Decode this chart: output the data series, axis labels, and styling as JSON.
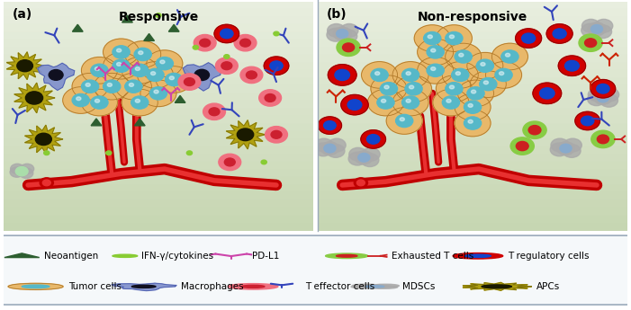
{
  "title_a": "Responsive",
  "title_b": "Non-responsive",
  "label_a": "(a)",
  "label_b": "(b)",
  "bg_top": "#e8eedf",
  "bg_bottom": "#c5d5b0",
  "legend_bg": "#f5f8fa",
  "border_color": "#9aaabb",
  "tumor_outer": "#e8b86a",
  "tumor_inner": "#56b8c8",
  "vessel_dark": "#c00000",
  "vessel_light": "#e83030",
  "treg_outer": "#d00000",
  "treg_inner": "#1144cc",
  "teff_outer": "#f07080",
  "teff_inner": "#cc2030",
  "apc_outer": "#b0a010",
  "apc_inner": "#1a1a00",
  "macro_outer": "#8090cc",
  "macro_inner": "#101020",
  "mdsc_outer": "#aaaaaa",
  "mdsc_inner": "#88aacc",
  "neoantigen_color": "#2d5e30",
  "cytokine_color": "#88cc33",
  "pdl1_color": "#cc44aa",
  "antibody_color": "#3344bb",
  "exhausted_outer": "#88cc44",
  "exhausted_inner": "#cc2020"
}
